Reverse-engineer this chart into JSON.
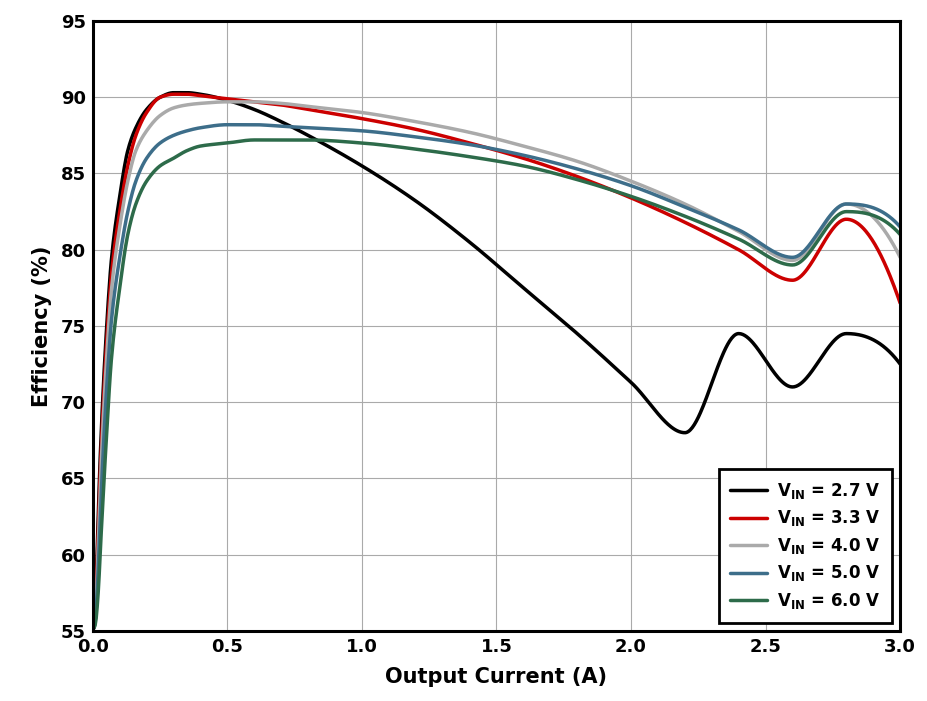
{
  "xlabel": "Output Current (A)",
  "ylabel": "Efficiency (%)",
  "xlim": [
    0,
    3
  ],
  "ylim": [
    55,
    95
  ],
  "xticks": [
    0,
    0.5,
    1.0,
    1.5,
    2.0,
    2.5,
    3.0
  ],
  "yticks": [
    55,
    60,
    65,
    70,
    75,
    80,
    85,
    90,
    95
  ],
  "series": [
    {
      "label": "V_IN_2.7",
      "color": "#000000",
      "linewidth": 2.5,
      "points_x": [
        0.005,
        0.01,
        0.02,
        0.03,
        0.05,
        0.07,
        0.1,
        0.13,
        0.16,
        0.2,
        0.25,
        0.3,
        0.35,
        0.4,
        0.5,
        0.6,
        0.7,
        0.8,
        1.0,
        1.2,
        1.4,
        1.6,
        1.8,
        2.0,
        2.2,
        2.4,
        2.6,
        2.8,
        3.0
      ],
      "points_y": [
        55.3,
        57.0,
        62.5,
        67.5,
        74.5,
        79.5,
        83.5,
        86.5,
        88.0,
        89.2,
        90.0,
        90.3,
        90.3,
        90.2,
        89.8,
        89.2,
        88.4,
        87.5,
        85.5,
        83.2,
        80.5,
        77.5,
        74.5,
        71.3,
        68.0,
        74.5,
        71.0,
        74.5,
        72.5
      ]
    },
    {
      "label": "V_IN_3.3",
      "color": "#cc0000",
      "linewidth": 2.5,
      "points_x": [
        0.005,
        0.01,
        0.02,
        0.03,
        0.05,
        0.07,
        0.1,
        0.13,
        0.16,
        0.2,
        0.25,
        0.3,
        0.35,
        0.4,
        0.5,
        0.6,
        0.7,
        0.8,
        1.0,
        1.2,
        1.4,
        1.6,
        1.8,
        2.0,
        2.2,
        2.4,
        2.6,
        2.8,
        3.0
      ],
      "points_y": [
        55.2,
        56.5,
        61.5,
        66.5,
        73.5,
        78.5,
        82.5,
        85.5,
        87.5,
        89.0,
        90.0,
        90.2,
        90.2,
        90.1,
        89.9,
        89.7,
        89.5,
        89.2,
        88.6,
        87.9,
        87.0,
        86.0,
        84.8,
        83.4,
        81.8,
        80.0,
        78.0,
        82.0,
        76.5
      ]
    },
    {
      "label": "V_IN_4.0",
      "color": "#aaaaaa",
      "linewidth": 2.5,
      "points_x": [
        0.005,
        0.01,
        0.02,
        0.03,
        0.05,
        0.07,
        0.1,
        0.13,
        0.16,
        0.2,
        0.25,
        0.3,
        0.35,
        0.4,
        0.5,
        0.6,
        0.7,
        0.8,
        1.0,
        1.2,
        1.4,
        1.6,
        1.8,
        2.0,
        2.2,
        2.4,
        2.6,
        2.8,
        3.0
      ],
      "points_y": [
        55.2,
        56.0,
        60.5,
        65.5,
        72.5,
        77.5,
        81.5,
        84.5,
        86.5,
        87.8,
        88.8,
        89.3,
        89.5,
        89.6,
        89.7,
        89.7,
        89.6,
        89.4,
        89.0,
        88.4,
        87.7,
        86.8,
        85.8,
        84.5,
        83.0,
        81.2,
        79.3,
        83.0,
        79.5
      ]
    },
    {
      "label": "V_IN_5.0",
      "color": "#3d6e8a",
      "linewidth": 2.5,
      "points_x": [
        0.005,
        0.01,
        0.02,
        0.03,
        0.05,
        0.07,
        0.1,
        0.13,
        0.16,
        0.2,
        0.25,
        0.3,
        0.35,
        0.4,
        0.5,
        0.6,
        0.7,
        0.8,
        1.0,
        1.2,
        1.4,
        1.6,
        1.8,
        2.0,
        2.2,
        2.4,
        2.6,
        2.8,
        3.0
      ],
      "points_y": [
        55.2,
        55.8,
        59.0,
        63.5,
        70.5,
        75.5,
        79.5,
        82.5,
        84.5,
        86.0,
        87.0,
        87.5,
        87.8,
        88.0,
        88.2,
        88.2,
        88.1,
        88.0,
        87.8,
        87.4,
        86.9,
        86.2,
        85.3,
        84.2,
        82.8,
        81.3,
        79.5,
        83.0,
        81.5
      ]
    },
    {
      "label": "V_IN_6.0",
      "color": "#2d6b4a",
      "linewidth": 2.5,
      "points_x": [
        0.005,
        0.01,
        0.02,
        0.03,
        0.05,
        0.07,
        0.1,
        0.13,
        0.16,
        0.2,
        0.25,
        0.3,
        0.35,
        0.4,
        0.5,
        0.6,
        0.7,
        0.8,
        1.0,
        1.2,
        1.4,
        1.6,
        1.8,
        2.0,
        2.2,
        2.4,
        2.6,
        2.8,
        3.0
      ],
      "points_y": [
        55.2,
        55.5,
        57.5,
        61.0,
        67.5,
        73.0,
        77.5,
        81.0,
        83.0,
        84.5,
        85.5,
        86.0,
        86.5,
        86.8,
        87.0,
        87.2,
        87.2,
        87.2,
        87.0,
        86.6,
        86.1,
        85.5,
        84.6,
        83.5,
        82.2,
        80.7,
        79.0,
        82.5,
        81.0
      ]
    }
  ],
  "legend_labels": [
    "V_IN = 2.7 V",
    "V_IN = 3.3 V",
    "V_IN = 4.0 V",
    "V_IN = 5.0 V",
    "V_IN = 6.0 V"
  ],
  "background_color": "#ffffff",
  "grid_color": "#aaaaaa",
  "spine_color": "#000000",
  "spine_linewidth": 2.2
}
